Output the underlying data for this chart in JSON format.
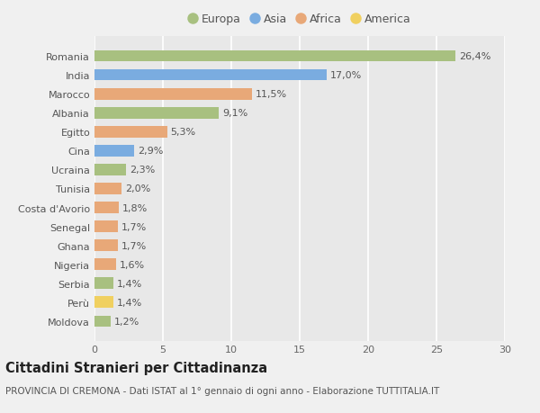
{
  "categories": [
    "Romania",
    "India",
    "Marocco",
    "Albania",
    "Egitto",
    "Cina",
    "Ucraina",
    "Tunisia",
    "Costa d'Avorio",
    "Senegal",
    "Ghana",
    "Nigeria",
    "Serbia",
    "Perù",
    "Moldova"
  ],
  "values": [
    26.4,
    17.0,
    11.5,
    9.1,
    5.3,
    2.9,
    2.3,
    2.0,
    1.8,
    1.7,
    1.7,
    1.6,
    1.4,
    1.4,
    1.2
  ],
  "labels": [
    "26,4%",
    "17,0%",
    "11,5%",
    "9,1%",
    "5,3%",
    "2,9%",
    "2,3%",
    "2,0%",
    "1,8%",
    "1,7%",
    "1,7%",
    "1,6%",
    "1,4%",
    "1,4%",
    "1,2%"
  ],
  "continents": [
    "Europa",
    "Asia",
    "Africa",
    "Europa",
    "Africa",
    "Asia",
    "Europa",
    "Africa",
    "Africa",
    "Africa",
    "Africa",
    "Africa",
    "Europa",
    "America",
    "Europa"
  ],
  "continent_colors": {
    "Europa": "#a8c080",
    "Asia": "#7aace0",
    "Africa": "#e8a878",
    "America": "#f0d060"
  },
  "legend_order": [
    "Europa",
    "Asia",
    "Africa",
    "America"
  ],
  "bg_color": "#f0f0f0",
  "plot_bg_color": "#e8e8e8",
  "grid_color": "#ffffff",
  "title": "Cittadini Stranieri per Cittadinanza",
  "subtitle": "PROVINCIA DI CREMONA - Dati ISTAT al 1° gennaio di ogni anno - Elaborazione TUTTITALIA.IT",
  "xlim": [
    0,
    30
  ],
  "xticks": [
    0,
    5,
    10,
    15,
    20,
    25,
    30
  ],
  "bar_height": 0.6,
  "label_fontsize": 8,
  "tick_fontsize": 8,
  "title_fontsize": 10.5,
  "subtitle_fontsize": 7.5
}
